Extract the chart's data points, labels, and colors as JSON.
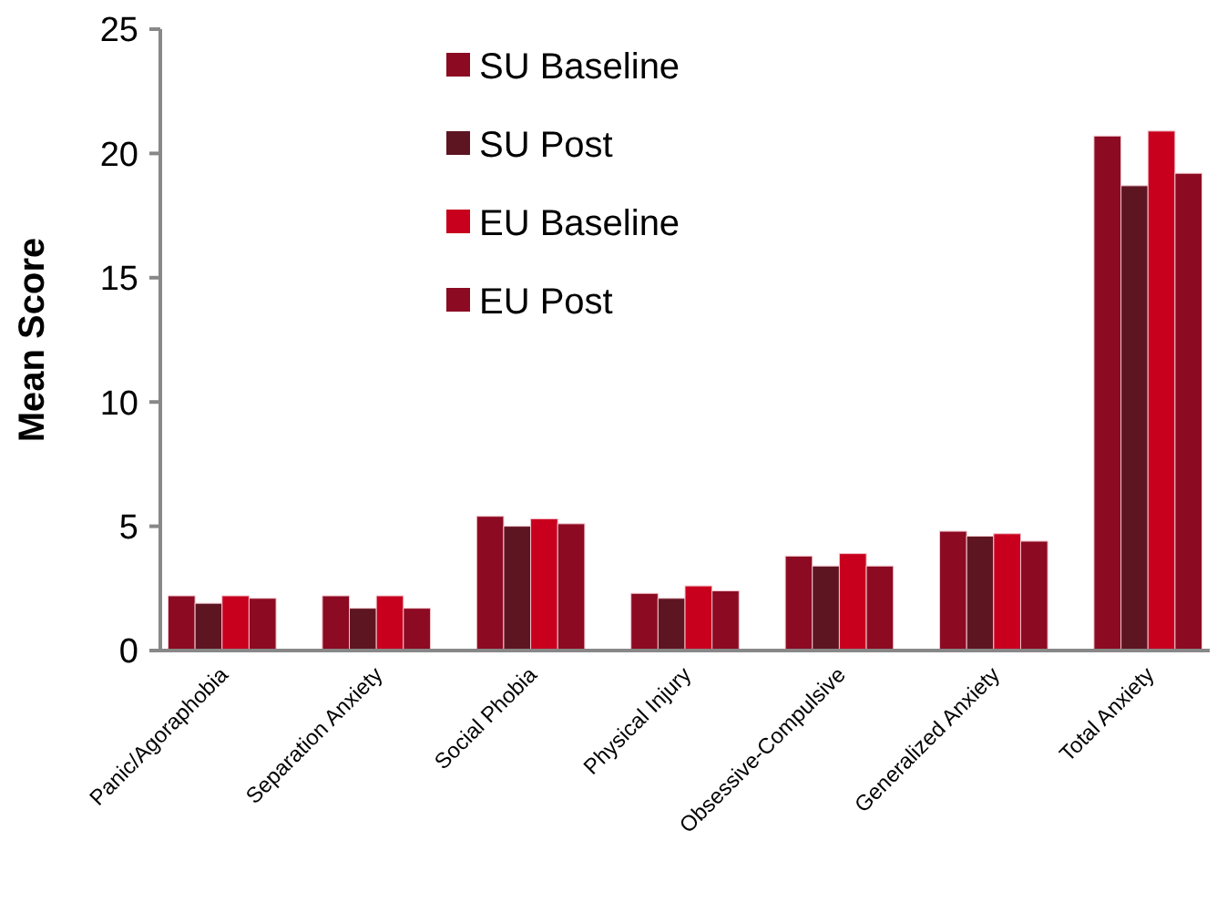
{
  "chart_data": {
    "type": "bar",
    "ylabel": "Mean Score",
    "categories": [
      "Panic/Agoraphobia",
      "Separation Anxiety",
      "Social Phobia",
      "Physical Injury",
      "Obsessive-Compulsive",
      "Generalized Anxiety",
      "Total Anxiety"
    ],
    "series": [
      {
        "name": "SU Baseline",
        "color": "#8c0a22",
        "values": [
          2.2,
          2.2,
          5.4,
          2.3,
          3.8,
          4.8,
          20.7
        ]
      },
      {
        "name": "SU Post",
        "color": "#5e1522",
        "values": [
          1.9,
          1.7,
          5.0,
          2.1,
          3.4,
          4.6,
          18.7
        ]
      },
      {
        "name": "EU Baseline",
        "color": "#c8001e",
        "values": [
          2.2,
          2.2,
          5.3,
          2.6,
          3.9,
          4.7,
          20.9
        ]
      },
      {
        "name": "EU Post",
        "color": "#8c0a22",
        "values": [
          2.1,
          1.7,
          5.1,
          2.4,
          3.4,
          4.4,
          19.2
        ]
      }
    ],
    "ylim": [
      0,
      25
    ],
    "yticks": [
      0,
      5,
      10,
      15,
      20,
      25
    ],
    "grid": false,
    "legend": "top"
  }
}
